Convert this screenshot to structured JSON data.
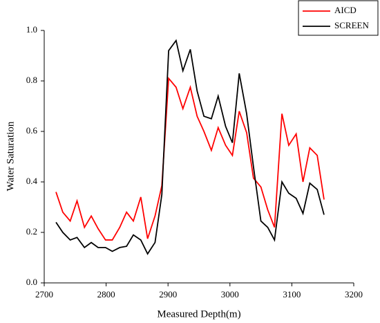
{
  "chart_data": {
    "type": "line",
    "x_label": "Measured Depth(m)",
    "y_label": "Water Saturation",
    "x": [
      2719,
      2730,
      2742,
      2753,
      2765,
      2776,
      2787,
      2799,
      2810,
      2822,
      2833,
      2844,
      2856,
      2867,
      2879,
      2890,
      2901,
      2913,
      2924,
      2936,
      2947,
      2958,
      2970,
      2981,
      2993,
      3004,
      3015,
      3027,
      3038,
      3050,
      3061,
      3072,
      3084,
      3095,
      3107,
      3118,
      3129,
      3141,
      3152
    ],
    "series": [
      {
        "name": "AICD",
        "color": "#ff0000",
        "values": [
          0.36,
          0.28,
          0.245,
          0.325,
          0.22,
          0.265,
          0.215,
          0.17,
          0.17,
          0.22,
          0.28,
          0.245,
          0.34,
          0.175,
          0.265,
          0.385,
          0.81,
          0.775,
          0.69,
          0.775,
          0.66,
          0.6,
          0.525,
          0.615,
          0.545,
          0.505,
          0.68,
          0.595,
          0.415,
          0.38,
          0.29,
          0.22,
          0.67,
          0.545,
          0.59,
          0.4,
          0.535,
          0.505,
          0.33
        ]
      },
      {
        "name": "SCREEN",
        "color": "#000000",
        "values": [
          0.24,
          0.2,
          0.17,
          0.18,
          0.14,
          0.16,
          0.14,
          0.14,
          0.125,
          0.14,
          0.145,
          0.19,
          0.17,
          0.115,
          0.16,
          0.35,
          0.92,
          0.96,
          0.84,
          0.925,
          0.76,
          0.66,
          0.65,
          0.74,
          0.62,
          0.555,
          0.83,
          0.67,
          0.46,
          0.245,
          0.22,
          0.17,
          0.4,
          0.355,
          0.335,
          0.275,
          0.395,
          0.37,
          0.27
        ]
      }
    ],
    "xlim": [
      2700,
      3200
    ],
    "xticks": [
      2700,
      2800,
      2900,
      3000,
      3100,
      3200
    ],
    "ylim": [
      0,
      1
    ],
    "yticks": [
      {
        "value": 0,
        "label": "0.0"
      },
      {
        "value": 0.2,
        "label": "0.2"
      },
      {
        "value": 0.4,
        "label": "0.4"
      },
      {
        "value": 0.6,
        "label": "0.6"
      },
      {
        "value": 0.8,
        "label": "0.8"
      },
      {
        "value": 1,
        "label": "1.0"
      }
    ],
    "legend": "upper-right"
  }
}
